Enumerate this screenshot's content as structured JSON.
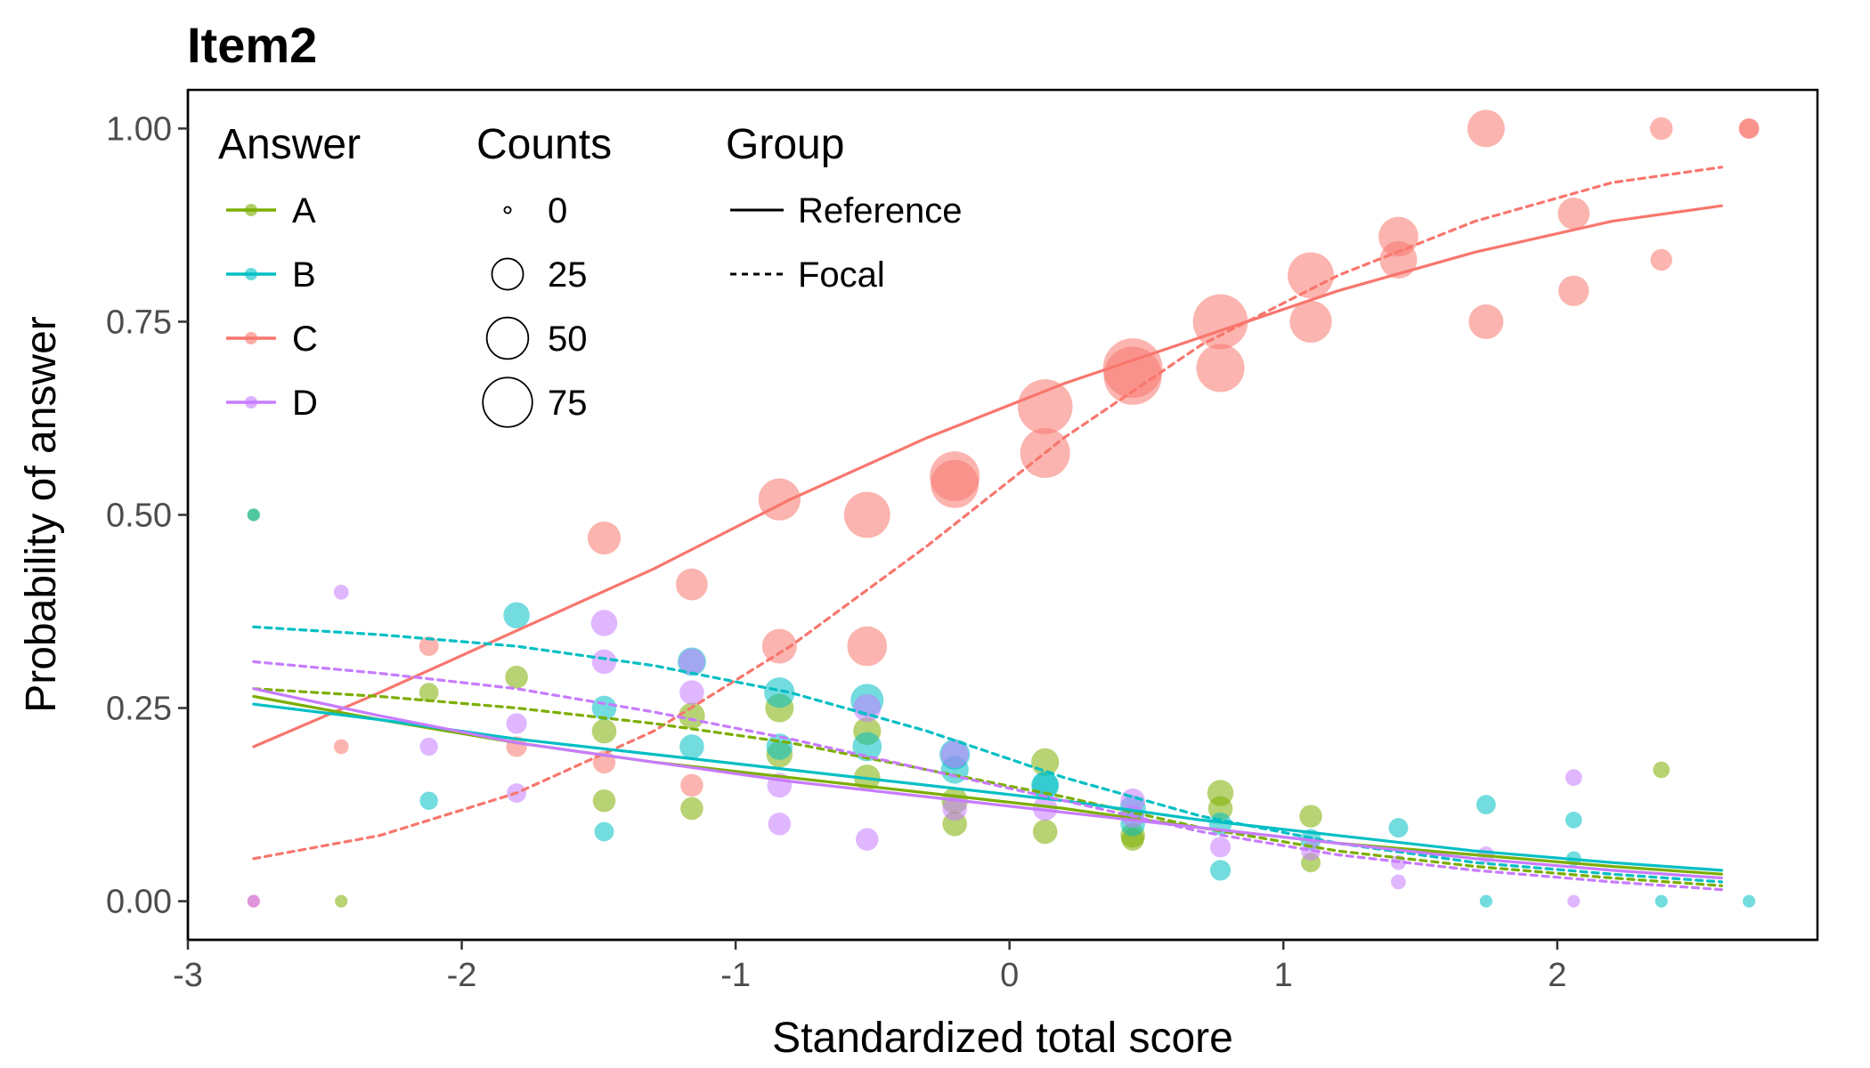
{
  "chart_data": {
    "type": "line",
    "title": "Item2",
    "xlabel": "Standardized total score",
    "ylabel": "Probability of answer",
    "xlim": [
      -3.0,
      2.95
    ],
    "ylim": [
      -0.05,
      1.05
    ],
    "grid": false,
    "x_ticks": [
      -3,
      -2,
      -1,
      0,
      1,
      2
    ],
    "y_ticks": [
      0.0,
      0.25,
      0.5,
      0.75,
      1.0
    ],
    "x_tick_labels": [
      "-3",
      "-2",
      "-1",
      "0",
      "1",
      "2"
    ],
    "y_tick_labels": [
      "0.00",
      "0.25",
      "0.50",
      "0.75",
      "1.00"
    ],
    "legend": {
      "placement": "top-left",
      "answer_title": "Answer",
      "answers": [
        {
          "label": "A",
          "color": "#7CAE00"
        },
        {
          "label": "B",
          "color": "#00BFC4"
        },
        {
          "label": "C",
          "color": "#F8766D"
        },
        {
          "label": "D",
          "color": "#C77CFF"
        }
      ],
      "counts_title": "Counts",
      "counts": [
        {
          "label": "0",
          "value": 0
        },
        {
          "label": "25",
          "value": 25
        },
        {
          "label": "50",
          "value": 50
        },
        {
          "label": "75",
          "value": 75
        }
      ],
      "group_title": "Group",
      "groups": [
        {
          "label": "Reference",
          "dash": "solid"
        },
        {
          "label": "Focal",
          "dash": "dashed"
        }
      ]
    },
    "curve_x": [
      -2.76,
      -2.3,
      -1.8,
      -1.3,
      -0.8,
      -0.3,
      0.2,
      0.7,
      1.2,
      1.7,
      2.2,
      2.6
    ],
    "series": [
      {
        "answer": "C",
        "group": "Reference",
        "color": "#F8766D",
        "dash": "solid",
        "values": [
          0.2,
          0.27,
          0.35,
          0.43,
          0.52,
          0.6,
          0.67,
          0.73,
          0.79,
          0.84,
          0.88,
          0.9
        ]
      },
      {
        "answer": "C",
        "group": "Focal",
        "color": "#F8766D",
        "dash": "dashed",
        "values": [
          0.055,
          0.085,
          0.14,
          0.22,
          0.33,
          0.46,
          0.6,
          0.72,
          0.81,
          0.88,
          0.93,
          0.95
        ]
      },
      {
        "answer": "A",
        "group": "Reference",
        "color": "#7CAE00",
        "dash": "solid",
        "values": [
          0.265,
          0.235,
          0.205,
          0.18,
          0.16,
          0.14,
          0.12,
          0.095,
          0.075,
          0.06,
          0.045,
          0.035
        ]
      },
      {
        "answer": "A",
        "group": "Focal",
        "color": "#7CAE00",
        "dash": "dashed",
        "values": [
          0.275,
          0.265,
          0.25,
          0.23,
          0.205,
          0.17,
          0.135,
          0.095,
          0.065,
          0.045,
          0.03,
          0.02
        ]
      },
      {
        "answer": "B",
        "group": "Reference",
        "color": "#00BFC4",
        "dash": "solid",
        "values": [
          0.255,
          0.235,
          0.21,
          0.19,
          0.17,
          0.15,
          0.13,
          0.105,
          0.085,
          0.065,
          0.05,
          0.04
        ]
      },
      {
        "answer": "B",
        "group": "Focal",
        "color": "#00BFC4",
        "dash": "dashed",
        "values": [
          0.355,
          0.345,
          0.33,
          0.305,
          0.27,
          0.22,
          0.16,
          0.11,
          0.075,
          0.05,
          0.035,
          0.025
        ]
      },
      {
        "answer": "D",
        "group": "Reference",
        "color": "#C77CFF",
        "dash": "solid",
        "values": [
          0.275,
          0.24,
          0.205,
          0.18,
          0.155,
          0.135,
          0.115,
          0.095,
          0.075,
          0.055,
          0.04,
          0.03
        ]
      },
      {
        "answer": "D",
        "group": "Focal",
        "color": "#C77CFF",
        "dash": "dashed",
        "values": [
          0.31,
          0.295,
          0.275,
          0.245,
          0.21,
          0.17,
          0.13,
          0.09,
          0.06,
          0.04,
          0.025,
          0.015
        ]
      }
    ],
    "points": [
      {
        "answer": "C",
        "x": -2.76,
        "y": 0.0,
        "count": 1
      },
      {
        "answer": "C",
        "x": -2.44,
        "y": 0.2,
        "count": 2
      },
      {
        "answer": "C",
        "x": -2.12,
        "y": 0.33,
        "count": 5
      },
      {
        "answer": "C",
        "x": -1.8,
        "y": 0.2,
        "count": 6
      },
      {
        "answer": "C",
        "x": -1.48,
        "y": 0.47,
        "count": 22
      },
      {
        "answer": "C",
        "x": -1.48,
        "y": 0.18,
        "count": 8
      },
      {
        "answer": "C",
        "x": -1.16,
        "y": 0.41,
        "count": 20
      },
      {
        "answer": "C",
        "x": -1.16,
        "y": 0.15,
        "count": 8
      },
      {
        "answer": "C",
        "x": -0.84,
        "y": 0.52,
        "count": 40
      },
      {
        "answer": "C",
        "x": -0.84,
        "y": 0.33,
        "count": 25
      },
      {
        "answer": "C",
        "x": -0.52,
        "y": 0.5,
        "count": 50
      },
      {
        "answer": "C",
        "x": -0.52,
        "y": 0.33,
        "count": 35
      },
      {
        "answer": "C",
        "x": -0.2,
        "y": 0.55,
        "count": 60
      },
      {
        "answer": "C",
        "x": -0.2,
        "y": 0.54,
        "count": 55
      },
      {
        "answer": "C",
        "x": 0.13,
        "y": 0.64,
        "count": 75
      },
      {
        "answer": "C",
        "x": 0.13,
        "y": 0.58,
        "count": 60
      },
      {
        "answer": "C",
        "x": 0.45,
        "y": 0.69,
        "count": 90
      },
      {
        "answer": "C",
        "x": 0.45,
        "y": 0.68,
        "count": 85
      },
      {
        "answer": "C",
        "x": 0.77,
        "y": 0.75,
        "count": 75
      },
      {
        "answer": "C",
        "x": 0.77,
        "y": 0.69,
        "count": 55
      },
      {
        "answer": "C",
        "x": 1.1,
        "y": 0.81,
        "count": 50
      },
      {
        "answer": "C",
        "x": 1.1,
        "y": 0.75,
        "count": 40
      },
      {
        "answer": "C",
        "x": 1.42,
        "y": 0.86,
        "count": 35
      },
      {
        "answer": "C",
        "x": 1.42,
        "y": 0.83,
        "count": 30
      },
      {
        "answer": "C",
        "x": 1.74,
        "y": 1.0,
        "count": 30
      },
      {
        "answer": "C",
        "x": 1.74,
        "y": 0.75,
        "count": 25
      },
      {
        "answer": "C",
        "x": 2.06,
        "y": 0.89,
        "count": 20
      },
      {
        "answer": "C",
        "x": 2.06,
        "y": 0.79,
        "count": 18
      },
      {
        "answer": "C",
        "x": 2.38,
        "y": 1.0,
        "count": 8
      },
      {
        "answer": "C",
        "x": 2.38,
        "y": 0.83,
        "count": 7
      },
      {
        "answer": "C",
        "x": 2.7,
        "y": 1.0,
        "count": 6
      },
      {
        "answer": "C",
        "x": 2.7,
        "y": 1.0,
        "count": 5
      },
      {
        "answer": "A",
        "x": -2.76,
        "y": 0.5,
        "count": 1
      },
      {
        "answer": "A",
        "x": -2.44,
        "y": 0.0,
        "count": 1
      },
      {
        "answer": "A",
        "x": -2.12,
        "y": 0.27,
        "count": 5
      },
      {
        "answer": "A",
        "x": -1.8,
        "y": 0.29,
        "count": 8
      },
      {
        "answer": "A",
        "x": -1.48,
        "y": 0.22,
        "count": 10
      },
      {
        "answer": "A",
        "x": -1.48,
        "y": 0.13,
        "count": 8
      },
      {
        "answer": "A",
        "x": -1.16,
        "y": 0.24,
        "count": 12
      },
      {
        "answer": "A",
        "x": -1.16,
        "y": 0.12,
        "count": 8
      },
      {
        "answer": "A",
        "x": -0.84,
        "y": 0.25,
        "count": 15
      },
      {
        "answer": "A",
        "x": -0.84,
        "y": 0.19,
        "count": 12
      },
      {
        "answer": "A",
        "x": -0.52,
        "y": 0.22,
        "count": 14
      },
      {
        "answer": "A",
        "x": -0.52,
        "y": 0.16,
        "count": 12
      },
      {
        "answer": "A",
        "x": -0.2,
        "y": 0.13,
        "count": 12
      },
      {
        "answer": "A",
        "x": -0.2,
        "y": 0.1,
        "count": 10
      },
      {
        "answer": "A",
        "x": 0.13,
        "y": 0.18,
        "count": 14
      },
      {
        "answer": "A",
        "x": 0.13,
        "y": 0.09,
        "count": 10
      },
      {
        "answer": "A",
        "x": 0.45,
        "y": 0.085,
        "count": 10
      },
      {
        "answer": "A",
        "x": 0.45,
        "y": 0.08,
        "count": 8
      },
      {
        "answer": "A",
        "x": 0.77,
        "y": 0.14,
        "count": 12
      },
      {
        "answer": "A",
        "x": 0.77,
        "y": 0.12,
        "count": 10
      },
      {
        "answer": "A",
        "x": 1.1,
        "y": 0.11,
        "count": 8
      },
      {
        "answer": "A",
        "x": 1.1,
        "y": 0.05,
        "count": 5
      },
      {
        "answer": "A",
        "x": 2.38,
        "y": 0.17,
        "count": 3
      },
      {
        "answer": "B",
        "x": -2.76,
        "y": 0.5,
        "count": 1
      },
      {
        "answer": "B",
        "x": -2.12,
        "y": 0.13,
        "count": 4
      },
      {
        "answer": "B",
        "x": -1.8,
        "y": 0.37,
        "count": 12
      },
      {
        "answer": "B",
        "x": -1.48,
        "y": 0.25,
        "count": 10
      },
      {
        "answer": "B",
        "x": -1.48,
        "y": 0.09,
        "count": 5
      },
      {
        "answer": "B",
        "x": -1.16,
        "y": 0.31,
        "count": 15
      },
      {
        "answer": "B",
        "x": -1.16,
        "y": 0.2,
        "count": 10
      },
      {
        "answer": "B",
        "x": -0.84,
        "y": 0.27,
        "count": 18
      },
      {
        "answer": "B",
        "x": -0.84,
        "y": 0.2,
        "count": 12
      },
      {
        "answer": "B",
        "x": -0.52,
        "y": 0.26,
        "count": 22
      },
      {
        "answer": "B",
        "x": -0.52,
        "y": 0.2,
        "count": 16
      },
      {
        "answer": "B",
        "x": -0.2,
        "y": 0.19,
        "count": 18
      },
      {
        "answer": "B",
        "x": -0.2,
        "y": 0.17,
        "count": 14
      },
      {
        "answer": "B",
        "x": 0.13,
        "y": 0.15,
        "count": 14
      },
      {
        "answer": "B",
        "x": 0.13,
        "y": 0.15,
        "count": 12
      },
      {
        "answer": "B",
        "x": 0.45,
        "y": 0.12,
        "count": 12
      },
      {
        "answer": "B",
        "x": 0.45,
        "y": 0.1,
        "count": 10
      },
      {
        "answer": "B",
        "x": 0.77,
        "y": 0.1,
        "count": 8
      },
      {
        "answer": "B",
        "x": 0.77,
        "y": 0.04,
        "count": 6
      },
      {
        "answer": "B",
        "x": 1.1,
        "y": 0.08,
        "count": 6
      },
      {
        "answer": "B",
        "x": 1.42,
        "y": 0.095,
        "count": 5
      },
      {
        "answer": "B",
        "x": 1.74,
        "y": 0.125,
        "count": 5
      },
      {
        "answer": "B",
        "x": 2.06,
        "y": 0.105,
        "count": 3
      },
      {
        "answer": "B",
        "x": 2.06,
        "y": 0.055,
        "count": 2
      },
      {
        "answer": "B",
        "x": 1.74,
        "y": 0.0,
        "count": 1
      },
      {
        "answer": "B",
        "x": 2.38,
        "y": 0.0,
        "count": 1
      },
      {
        "answer": "B",
        "x": 2.7,
        "y": 0.0,
        "count": 1
      },
      {
        "answer": "D",
        "x": -2.76,
        "y": 0.0,
        "count": 1
      },
      {
        "answer": "D",
        "x": -2.44,
        "y": 0.4,
        "count": 2
      },
      {
        "answer": "D",
        "x": -2.12,
        "y": 0.2,
        "count": 4
      },
      {
        "answer": "D",
        "x": -1.8,
        "y": 0.23,
        "count": 6
      },
      {
        "answer": "D",
        "x": -1.8,
        "y": 0.14,
        "count": 5
      },
      {
        "answer": "D",
        "x": -1.48,
        "y": 0.36,
        "count": 12
      },
      {
        "answer": "D",
        "x": -1.48,
        "y": 0.31,
        "count": 10
      },
      {
        "answer": "D",
        "x": -1.16,
        "y": 0.31,
        "count": 12
      },
      {
        "answer": "D",
        "x": -1.16,
        "y": 0.27,
        "count": 10
      },
      {
        "answer": "D",
        "x": -0.84,
        "y": 0.15,
        "count": 10
      },
      {
        "answer": "D",
        "x": -0.84,
        "y": 0.1,
        "count": 8
      },
      {
        "answer": "D",
        "x": -0.52,
        "y": 0.25,
        "count": 14
      },
      {
        "answer": "D",
        "x": -0.52,
        "y": 0.08,
        "count": 8
      },
      {
        "answer": "D",
        "x": -0.2,
        "y": 0.19,
        "count": 14
      },
      {
        "answer": "D",
        "x": -0.2,
        "y": 0.12,
        "count": 10
      },
      {
        "answer": "D",
        "x": 0.13,
        "y": 0.12,
        "count": 10
      },
      {
        "answer": "D",
        "x": 0.45,
        "y": 0.13,
        "count": 10
      },
      {
        "answer": "D",
        "x": 0.45,
        "y": 0.11,
        "count": 8
      },
      {
        "answer": "D",
        "x": 0.77,
        "y": 0.07,
        "count": 6
      },
      {
        "answer": "D",
        "x": 1.1,
        "y": 0.065,
        "count": 5
      },
      {
        "answer": "D",
        "x": 1.42,
        "y": 0.025,
        "count": 2
      },
      {
        "answer": "D",
        "x": 1.74,
        "y": 0.06,
        "count": 3
      },
      {
        "answer": "D",
        "x": 2.06,
        "y": 0.16,
        "count": 3
      },
      {
        "answer": "D",
        "x": 2.06,
        "y": 0.0,
        "count": 1
      },
      {
        "answer": "D",
        "x": 1.42,
        "y": 0.05,
        "count": 2
      }
    ]
  }
}
